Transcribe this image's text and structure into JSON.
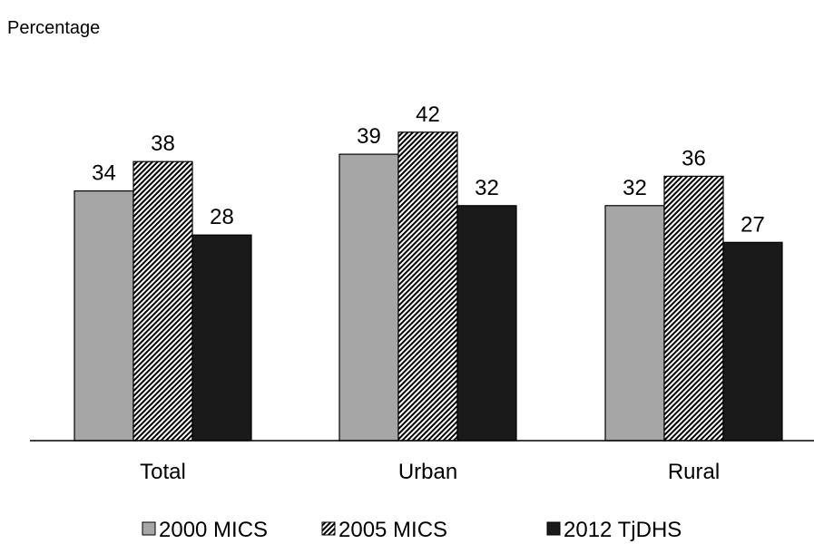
{
  "chart_data": {
    "type": "bar",
    "ylabel": "Percentage",
    "categories": [
      "Total",
      "Urban",
      "Rural"
    ],
    "series": [
      {
        "name": "2000 MICS",
        "values": [
          34,
          39,
          32
        ],
        "pattern": "solid",
        "color": "#a6a6a6"
      },
      {
        "name": "2005 MICS",
        "values": [
          38,
          42,
          36
        ],
        "pattern": "diagonal-hatch",
        "color": "#000000"
      },
      {
        "name": "2012 TjDHS",
        "values": [
          28,
          32,
          27
        ],
        "pattern": "solid",
        "color": "#1a1a1a"
      }
    ],
    "ylim": [
      0,
      50
    ],
    "grid": false,
    "data_labels": true,
    "legend_position": "bottom"
  }
}
